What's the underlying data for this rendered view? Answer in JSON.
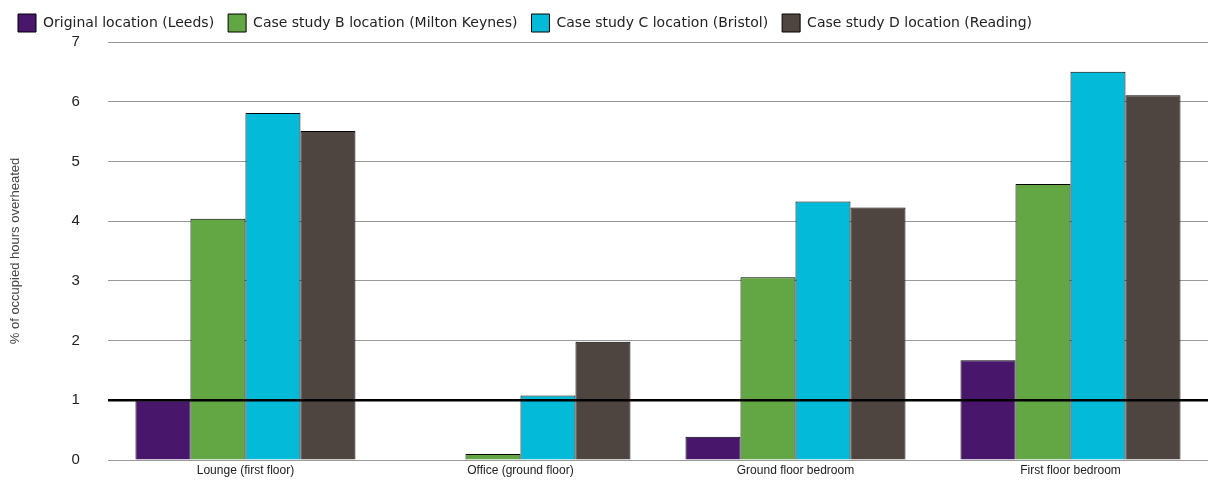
{
  "chart_data": {
    "type": "bar",
    "ylabel": "% of occupied hours overheated",
    "categories": [
      "Lounge (first floor)",
      "Office (ground floor)",
      "Ground floor bedroom",
      "First floor bedroom"
    ],
    "series": [
      {
        "name": "Original location (Leeds)",
        "color": "#48166a",
        "values": [
          1.0,
          0.0,
          0.39,
          1.67
        ]
      },
      {
        "name": "Case study B location (Milton Keynes)",
        "color": "#62a744",
        "values": [
          4.04,
          0.1,
          3.06,
          4.62
        ]
      },
      {
        "name": "Case study C location (Bristol)",
        "color": "#03bbd8",
        "values": [
          5.81,
          1.08,
          4.33,
          6.5
        ]
      },
      {
        "name": "Case study D location (Reading)",
        "color": "#4e4540",
        "values": [
          5.51,
          1.98,
          4.23,
          6.11
        ]
      }
    ],
    "ylim": [
      0,
      7
    ],
    "yticks": [
      0,
      1,
      2,
      3,
      4,
      5,
      6,
      7
    ],
    "grid": "y",
    "legend": "top left",
    "ref_lines": [
      {
        "axis": "y",
        "value": 1,
        "color": "#000000"
      }
    ]
  }
}
